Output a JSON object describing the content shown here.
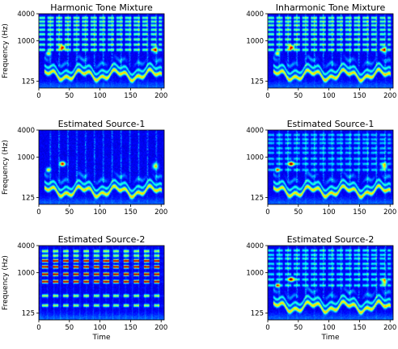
{
  "chart_data": [
    {
      "type": "heatmap",
      "title": "Harmonic Tone Mixture",
      "xlabel": "",
      "ylabel": "Frequency (Hz)",
      "xlim": [
        0,
        205
      ],
      "ylim": [
        88,
        4000
      ],
      "yscale": "log",
      "x_ticks": [
        "0",
        "50",
        "100",
        "150",
        "200"
      ],
      "y_ticks": [
        "4000",
        "1000",
        "125"
      ],
      "pattern": "mixture",
      "colormap": "jet"
    },
    {
      "type": "heatmap",
      "title": "Inharmonic Tone Mixture",
      "xlabel": "",
      "ylabel": "",
      "xlim": [
        0,
        205
      ],
      "ylim": [
        88,
        4000
      ],
      "yscale": "log",
      "x_ticks": [
        "0",
        "50",
        "100",
        "150",
        "200"
      ],
      "y_ticks": [
        "4000",
        "1000",
        "125"
      ],
      "pattern": "mixture",
      "colormap": "jet"
    },
    {
      "type": "heatmap",
      "title": "Estimated Source-1",
      "xlabel": "",
      "ylabel": "Frequency (Hz)",
      "xlim": [
        0,
        205
      ],
      "ylim": [
        88,
        4000
      ],
      "yscale": "log",
      "x_ticks": [
        "0",
        "50",
        "100",
        "150",
        "200"
      ],
      "y_ticks": [
        "4000",
        "1000",
        "125"
      ],
      "pattern": "speech",
      "colormap": "jet"
    },
    {
      "type": "heatmap",
      "title": "Estimated Source-1",
      "xlabel": "",
      "ylabel": "",
      "xlim": [
        0,
        205
      ],
      "ylim": [
        88,
        4000
      ],
      "yscale": "log",
      "x_ticks": [
        "0",
        "50",
        "100",
        "150",
        "200"
      ],
      "y_ticks": [
        "4000",
        "1000",
        "125"
      ],
      "pattern": "speech_tone",
      "colormap": "jet"
    },
    {
      "type": "heatmap",
      "title": "Estimated Source-2",
      "xlabel": "Time",
      "ylabel": "Frequency (Hz)",
      "xlim": [
        0,
        205
      ],
      "ylim": [
        88,
        4000
      ],
      "yscale": "log",
      "x_ticks": [
        "0",
        "50",
        "100",
        "150",
        "200"
      ],
      "y_ticks": [
        "4000",
        "1000",
        "125"
      ],
      "pattern": "harmonic_tone",
      "colormap": "jet"
    },
    {
      "type": "heatmap",
      "title": "Estimated Source-2",
      "xlabel": "Time",
      "ylabel": "",
      "xlim": [
        0,
        205
      ],
      "ylim": [
        88,
        4000
      ],
      "yscale": "log",
      "x_ticks": [
        "0",
        "50",
        "100",
        "150",
        "200"
      ],
      "y_ticks": [
        "4000",
        "1000",
        "125"
      ],
      "pattern": "inharmonic_residual",
      "colormap": "jet"
    }
  ]
}
